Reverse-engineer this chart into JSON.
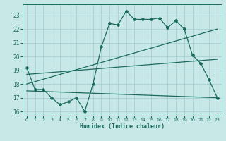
{
  "xlabel": "Humidex (Indice chaleur)",
  "bg_color": "#c8e8e8",
  "grid_color": "#a8d0d0",
  "line_color": "#1a6b5a",
  "xlim": [
    -0.5,
    23.5
  ],
  "ylim": [
    15.7,
    23.8
  ],
  "yticks": [
    16,
    17,
    18,
    19,
    20,
    21,
    22,
    23
  ],
  "xticks": [
    0,
    1,
    2,
    3,
    4,
    5,
    6,
    7,
    8,
    9,
    10,
    11,
    12,
    13,
    14,
    15,
    16,
    17,
    18,
    19,
    20,
    21,
    22,
    23
  ],
  "series1_x": [
    0,
    1,
    2,
    3,
    4,
    5,
    6,
    7,
    8,
    9,
    10,
    11,
    12,
    13,
    14,
    15,
    16,
    17,
    18,
    19,
    20,
    21,
    22,
    23
  ],
  "series1_y": [
    19.2,
    17.6,
    17.6,
    17.0,
    16.5,
    16.7,
    17.0,
    16.0,
    18.0,
    20.7,
    22.4,
    22.3,
    23.3,
    22.7,
    22.7,
    22.7,
    22.8,
    22.1,
    22.6,
    22.0,
    20.1,
    19.5,
    18.3,
    17.0
  ],
  "series2_x": [
    0,
    23
  ],
  "series2_y": [
    17.5,
    17.0
  ],
  "series3_x": [
    0,
    23
  ],
  "series3_y": [
    18.0,
    22.0
  ],
  "series4_x": [
    0,
    23
  ],
  "series4_y": [
    18.7,
    19.8
  ]
}
